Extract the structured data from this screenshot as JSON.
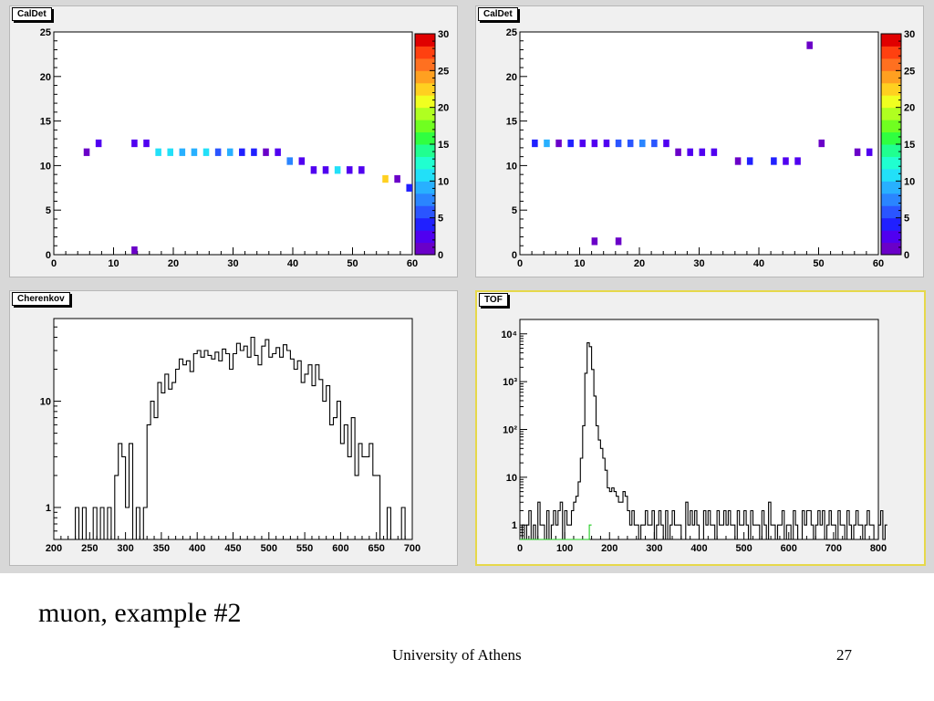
{
  "slide": {
    "caption": "muon, example #2",
    "footer": "University of Athens",
    "page_number": "27"
  },
  "chart_data": [
    {
      "type": "heatmap",
      "title": "CalDet",
      "xlim": [
        0,
        60
      ],
      "ylim": [
        0,
        25
      ],
      "x_ticks": [
        0,
        10,
        20,
        30,
        40,
        50,
        60
      ],
      "y_ticks": [
        0,
        5,
        10,
        15,
        20,
        25
      ],
      "zlim": [
        0,
        30
      ],
      "z_ticks": [
        0,
        5,
        10,
        15,
        20,
        25,
        30
      ],
      "palette": [
        "#6a00c8",
        "#5000f0",
        "#2020ff",
        "#2a55ff",
        "#2a85ff",
        "#28b0ff",
        "#22e0f8",
        "#20ffd0",
        "#20ff90",
        "#30ff40",
        "#70ff20",
        "#b0ff20",
        "#f0ff20",
        "#ffd020",
        "#ffa020",
        "#ff7020",
        "#ff4010",
        "#e00000"
      ],
      "points": [
        {
          "x": 5.5,
          "y": 11.5,
          "z": 1
        },
        {
          "x": 7.5,
          "y": 12.5,
          "z": 3
        },
        {
          "x": 13.5,
          "y": 12.5,
          "z": 3
        },
        {
          "x": 15.5,
          "y": 12.5,
          "z": 3
        },
        {
          "x": 17.5,
          "y": 11.5,
          "z": 10
        },
        {
          "x": 19.5,
          "y": 11.5,
          "z": 11
        },
        {
          "x": 21.5,
          "y": 11.5,
          "z": 9
        },
        {
          "x": 23.5,
          "y": 11.5,
          "z": 9
        },
        {
          "x": 25.5,
          "y": 11.5,
          "z": 10
        },
        {
          "x": 27.5,
          "y": 11.5,
          "z": 6
        },
        {
          "x": 29.5,
          "y": 11.5,
          "z": 9
        },
        {
          "x": 31.5,
          "y": 11.5,
          "z": 4
        },
        {
          "x": 33.5,
          "y": 11.5,
          "z": 4
        },
        {
          "x": 35.5,
          "y": 11.5,
          "z": 1
        },
        {
          "x": 37.5,
          "y": 11.5,
          "z": 2
        },
        {
          "x": 39.5,
          "y": 10.5,
          "z": 7
        },
        {
          "x": 41.5,
          "y": 10.5,
          "z": 3
        },
        {
          "x": 43.5,
          "y": 9.5,
          "z": 3
        },
        {
          "x": 45.5,
          "y": 9.5,
          "z": 3
        },
        {
          "x": 47.5,
          "y": 9.5,
          "z": 11
        },
        {
          "x": 49.5,
          "y": 9.5,
          "z": 2
        },
        {
          "x": 51.5,
          "y": 9.5,
          "z": 2
        },
        {
          "x": 55.5,
          "y": 8.5,
          "z": 22
        },
        {
          "x": 57.5,
          "y": 8.5,
          "z": 1
        },
        {
          "x": 59.5,
          "y": 7.5,
          "z": 4
        },
        {
          "x": 13.5,
          "y": 0.5,
          "z": 1
        }
      ]
    },
    {
      "type": "heatmap",
      "title": "CalDet",
      "xlim": [
        0,
        60
      ],
      "ylim": [
        0,
        25
      ],
      "x_ticks": [
        0,
        10,
        20,
        30,
        40,
        50,
        60
      ],
      "y_ticks": [
        0,
        5,
        10,
        15,
        20,
        25
      ],
      "zlim": [
        0,
        30
      ],
      "z_ticks": [
        0,
        5,
        10,
        15,
        20,
        25,
        30
      ],
      "points": [
        {
          "x": 2.5,
          "y": 12.5,
          "z": 4
        },
        {
          "x": 4.5,
          "y": 12.5,
          "z": 9
        },
        {
          "x": 6.5,
          "y": 12.5,
          "z": 1
        },
        {
          "x": 8.5,
          "y": 12.5,
          "z": 4
        },
        {
          "x": 10.5,
          "y": 12.5,
          "z": 3
        },
        {
          "x": 12.5,
          "y": 12.5,
          "z": 3
        },
        {
          "x": 14.5,
          "y": 12.5,
          "z": 2
        },
        {
          "x": 16.5,
          "y": 12.5,
          "z": 6
        },
        {
          "x": 18.5,
          "y": 12.5,
          "z": 6
        },
        {
          "x": 20.5,
          "y": 12.5,
          "z": 7
        },
        {
          "x": 22.5,
          "y": 12.5,
          "z": 6
        },
        {
          "x": 24.5,
          "y": 12.5,
          "z": 3
        },
        {
          "x": 26.5,
          "y": 11.5,
          "z": 1
        },
        {
          "x": 28.5,
          "y": 11.5,
          "z": 2
        },
        {
          "x": 30.5,
          "y": 11.5,
          "z": 2
        },
        {
          "x": 32.5,
          "y": 11.5,
          "z": 2
        },
        {
          "x": 36.5,
          "y": 10.5,
          "z": 1
        },
        {
          "x": 38.5,
          "y": 10.5,
          "z": 4
        },
        {
          "x": 42.5,
          "y": 10.5,
          "z": 4
        },
        {
          "x": 44.5,
          "y": 10.5,
          "z": 3
        },
        {
          "x": 46.5,
          "y": 10.5,
          "z": 3
        },
        {
          "x": 48.5,
          "y": 23.5,
          "z": 1
        },
        {
          "x": 50.5,
          "y": 12.5,
          "z": 1
        },
        {
          "x": 56.5,
          "y": 11.5,
          "z": 1
        },
        {
          "x": 58.5,
          "y": 11.5,
          "z": 2
        },
        {
          "x": 12.5,
          "y": 1.5,
          "z": 1
        },
        {
          "x": 16.5,
          "y": 1.5,
          "z": 1
        }
      ]
    },
    {
      "type": "line",
      "style": "step-histogram",
      "title": "Cherenkov",
      "xlim": [
        200,
        700
      ],
      "x_ticks": [
        200,
        250,
        300,
        350,
        400,
        450,
        500,
        550,
        600,
        650,
        700
      ],
      "y_scale": "log",
      "ylim": [
        0.5,
        60
      ],
      "y_ticks": [
        1,
        10
      ],
      "bin_width": 5,
      "x_start": 200,
      "values": [
        0,
        0,
        0,
        0,
        0,
        0,
        1,
        0,
        1,
        0,
        0,
        1,
        0,
        1,
        0,
        1,
        0,
        2,
        4,
        3,
        1,
        4,
        0,
        1,
        0,
        1,
        6,
        10,
        7,
        15,
        12,
        18,
        13,
        15,
        20,
        25,
        22,
        24,
        19,
        28,
        30,
        26,
        30,
        27,
        25,
        29,
        24,
        31,
        28,
        20,
        28,
        35,
        30,
        33,
        26,
        40,
        27,
        22,
        33,
        38,
        26,
        28,
        32,
        26,
        34,
        30,
        25,
        20,
        24,
        15,
        18,
        22,
        14,
        22,
        16,
        10,
        14,
        6,
        7,
        10,
        4,
        6,
        3,
        7,
        2,
        4,
        3,
        3,
        4,
        2,
        2,
        0,
        0,
        1,
        0,
        0,
        0,
        1,
        0,
        0
      ]
    },
    {
      "type": "line",
      "style": "step-histogram",
      "title": "TOF",
      "xlim": [
        0,
        800
      ],
      "x_ticks": [
        0,
        100,
        200,
        300,
        400,
        500,
        600,
        700,
        800
      ],
      "y_scale": "log",
      "ylim": [
        0.5,
        20000
      ],
      "y_ticks": [
        1,
        10,
        100,
        1000,
        10000
      ],
      "y_tick_labels": [
        "1",
        "10",
        "10²",
        "10³",
        "10⁴"
      ],
      "bin_width": 5,
      "x_start": 0,
      "series": [
        {
          "values": [
            0,
            1,
            0,
            1,
            2,
            0,
            1,
            0,
            3,
            1,
            1,
            0,
            2,
            0,
            1,
            2,
            1,
            2,
            3,
            0,
            2,
            1,
            1,
            2,
            3,
            4,
            8,
            25,
            120,
            1500,
            6500,
            5400,
            1800,
            500,
            120,
            60,
            40,
            25,
            14,
            6,
            5,
            6,
            5,
            4,
            3,
            3,
            5,
            4,
            2,
            1,
            2,
            1,
            1,
            0,
            1,
            1,
            2,
            1,
            1,
            2,
            0,
            1,
            2,
            1,
            0,
            2,
            0,
            1,
            2,
            1,
            1,
            1,
            0,
            0,
            3,
            1,
            2,
            1,
            2,
            1,
            0,
            0,
            2,
            1,
            2,
            1,
            1,
            0,
            2,
            1,
            1,
            2,
            1,
            2,
            1,
            1,
            0,
            2,
            1,
            1,
            2,
            1,
            0,
            2,
            1,
            1,
            1,
            0,
            2,
            1,
            0,
            3,
            1,
            1,
            0,
            1,
            1,
            2,
            0,
            1,
            1,
            0,
            2,
            1,
            0,
            0,
            2,
            1,
            2,
            2,
            1,
            0,
            1,
            2,
            1,
            2,
            0,
            1,
            2,
            1,
            1,
            0,
            2,
            1,
            1,
            0,
            2,
            1,
            0,
            1,
            2,
            1,
            1,
            0,
            1,
            2,
            1,
            1,
            0,
            0,
            1,
            2,
            0,
            1
          ]
        },
        {
          "values": [
            0,
            0,
            0,
            0,
            0,
            0,
            0,
            0,
            0,
            0,
            0,
            0,
            0,
            0,
            0,
            0,
            0,
            0,
            0,
            0,
            0,
            0,
            0,
            0,
            0,
            0,
            0,
            0,
            0,
            0,
            0,
            1
          ]
        }
      ],
      "colors": [
        "#000000",
        "#22cc22"
      ]
    }
  ]
}
